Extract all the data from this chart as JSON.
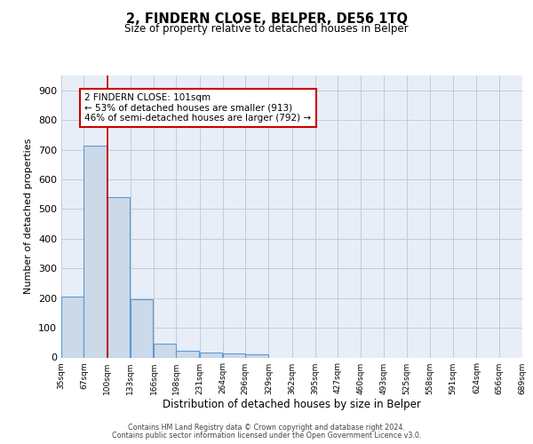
{
  "title": "2, FINDERN CLOSE, BELPER, DE56 1TQ",
  "subtitle": "Size of property relative to detached houses in Belper",
  "xlabel": "Distribution of detached houses by size in Belper",
  "ylabel": "Number of detached properties",
  "bar_edges": [
    35,
    67,
    100,
    133,
    166,
    198,
    231,
    264,
    296,
    329,
    362,
    395,
    427,
    460,
    493,
    525,
    558,
    591,
    624,
    656,
    689
  ],
  "bar_heights": [
    205,
    713,
    540,
    196,
    46,
    23,
    15,
    13,
    10,
    0,
    0,
    0,
    0,
    0,
    0,
    0,
    0,
    0,
    0,
    0
  ],
  "bar_color": "#ccd9e8",
  "bar_edge_color": "#5b9bd5",
  "vline_x": 100,
  "vline_color": "#cc0000",
  "annotation_text": "2 FINDERN CLOSE: 101sqm\n← 53% of detached houses are smaller (913)\n46% of semi-detached houses are larger (792) →",
  "annotation_box_color": "#ffffff",
  "annotation_box_edge_color": "#cc0000",
  "ylim": [
    0,
    950
  ],
  "yticks": [
    0,
    100,
    200,
    300,
    400,
    500,
    600,
    700,
    800,
    900
  ],
  "tick_labels": [
    "35sqm",
    "67sqm",
    "100sqm",
    "133sqm",
    "166sqm",
    "198sqm",
    "231sqm",
    "264sqm",
    "296sqm",
    "329sqm",
    "362sqm",
    "395sqm",
    "427sqm",
    "460sqm",
    "493sqm",
    "525sqm",
    "558sqm",
    "591sqm",
    "624sqm",
    "656sqm",
    "689sqm"
  ],
  "grid_color": "#c0ccd8",
  "bg_color": "#e8eef8",
  "footer_line1": "Contains HM Land Registry data © Crown copyright and database right 2024.",
  "footer_line2": "Contains public sector information licensed under the Open Government Licence v3.0."
}
